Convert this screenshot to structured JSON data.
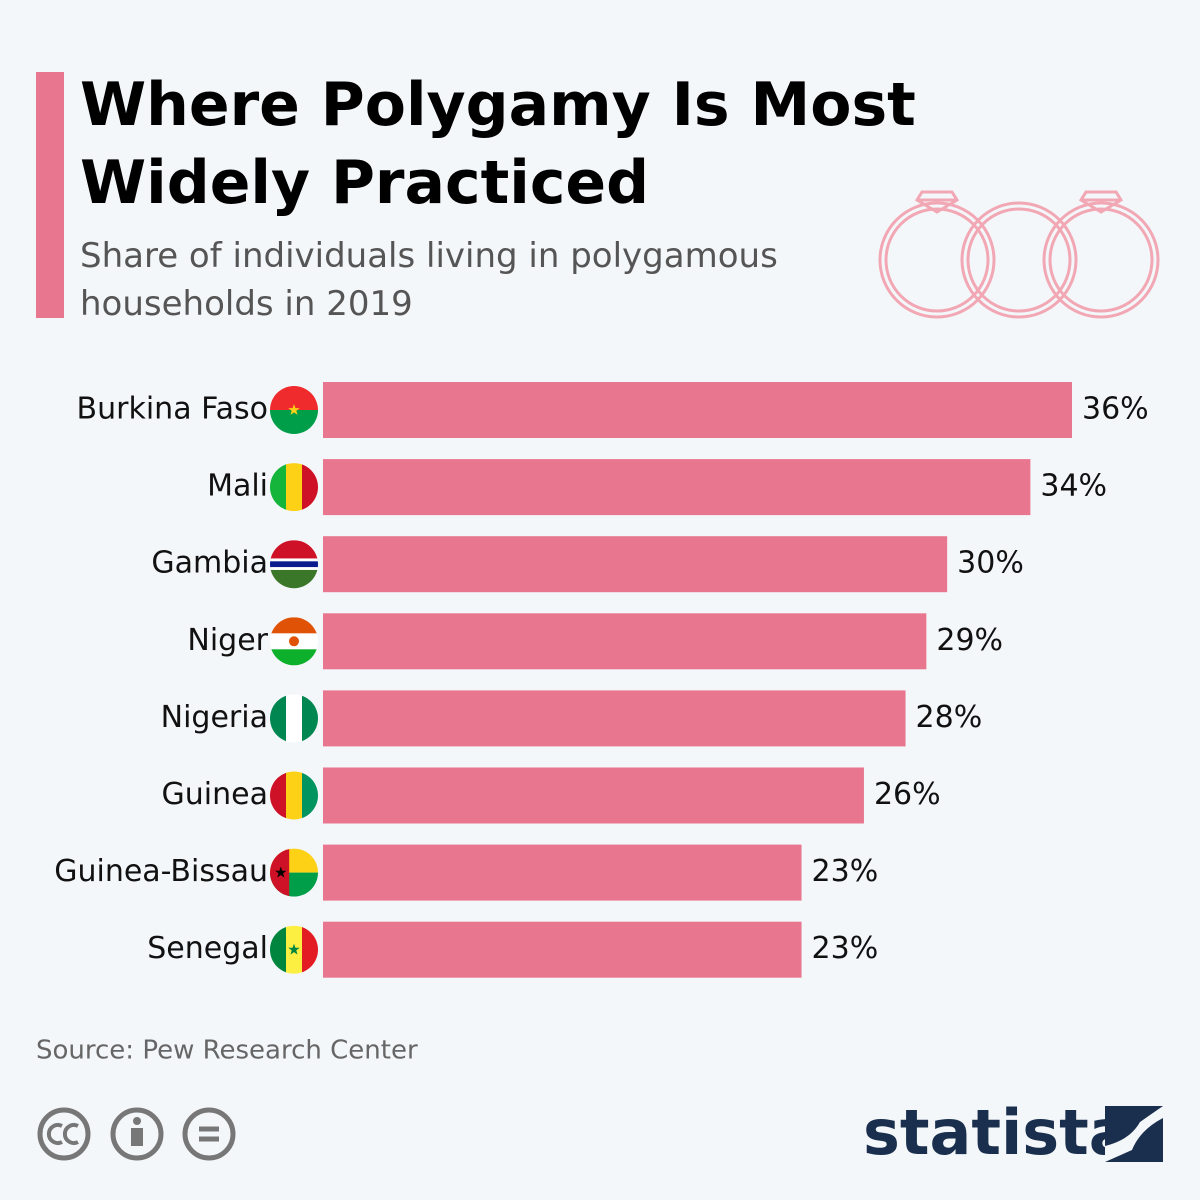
{
  "chart_data": {
    "type": "bar",
    "orientation": "horizontal",
    "title": "Where Polygamy Is Most Widely Practiced",
    "subtitle": "Share of individuals living in polygamous households in 2019",
    "categories": [
      "Burkina Faso",
      "Mali",
      "Gambia",
      "Niger",
      "Nigeria",
      "Guinea",
      "Guinea-Bissau",
      "Senegal"
    ],
    "values": [
      36,
      34,
      30,
      29,
      28,
      26,
      23,
      23
    ],
    "value_labels": [
      "36%",
      "34%",
      "30%",
      "29%",
      "28%",
      "26%",
      "23%",
      "23%"
    ],
    "color": "#e8768f",
    "source": "Source: Pew Research Center",
    "brand": "statista"
  }
}
